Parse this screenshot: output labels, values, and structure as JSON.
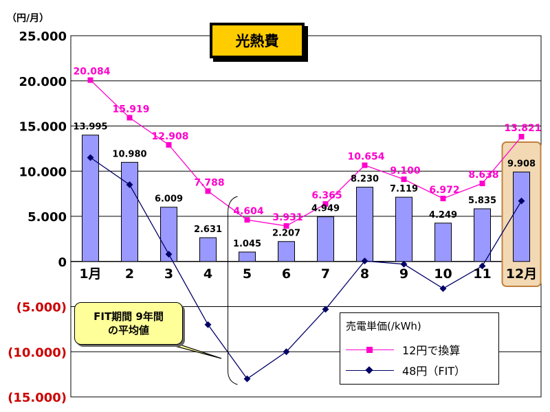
{
  "chart_data": {
    "type": "bar",
    "title": "光熱費",
    "unit_label": "（円/月）",
    "categories": [
      "1月",
      "2",
      "3",
      "4",
      "5",
      "6",
      "7",
      "8",
      "9",
      "10",
      "11",
      "12月"
    ],
    "ylim": [
      -15000,
      25000
    ],
    "y_ticks": [
      25000,
      20000,
      15000,
      10000,
      5000,
      0,
      -5000,
      -10000,
      -15000
    ],
    "y_tick_labels": [
      "25.000",
      "20.000",
      "15.000",
      "10.000",
      "5.000",
      "0",
      "(5.000)",
      "(10.000)",
      "(15.000)"
    ],
    "grid": true,
    "bars": {
      "values": [
        13995,
        10980,
        6009,
        2631,
        1045,
        2207,
        4949,
        8230,
        7119,
        4249,
        5835,
        9908
      ],
      "labels": [
        "13.995",
        "10.980",
        "6.009",
        "2.631",
        "1.045",
        "2.207",
        "4.949",
        "8.230",
        "7.119",
        "4.249",
        "5.835",
        "9.908"
      ],
      "color": "#9999ff"
    },
    "series": [
      {
        "name": "12円で換算",
        "color": "#ff00cc",
        "values": [
          20084,
          15919,
          12908,
          7788,
          4604,
          3931,
          6365,
          10654,
          9100,
          6972,
          8638,
          13821
        ],
        "labels": [
          "20.084",
          "15.919",
          "12.908",
          "7.788",
          "4.604",
          "3.931",
          "6.365",
          "10.654",
          "9.100",
          "6.972",
          "8.638",
          "13.821"
        ]
      },
      {
        "name": "48円（FIT）",
        "color": "#000066",
        "values": [
          11500,
          8500,
          800,
          -7000,
          -13000,
          -10000,
          -5300,
          50,
          -300,
          -3000,
          -500,
          6700
        ]
      }
    ],
    "legend_title": "売電単価(/kWh)",
    "legend_placement": "bottom-right",
    "annotation_lines": [
      "FIT期間 9年間",
      "の平均値"
    ],
    "highlight_category": "12月"
  },
  "colors": {
    "negative_tick": "#cc0000",
    "highlight_fill": "#f2d9b3",
    "highlight_stroke": "#c08040",
    "title_fill": "#ffcc00",
    "callout_fill": "#ffff99"
  }
}
